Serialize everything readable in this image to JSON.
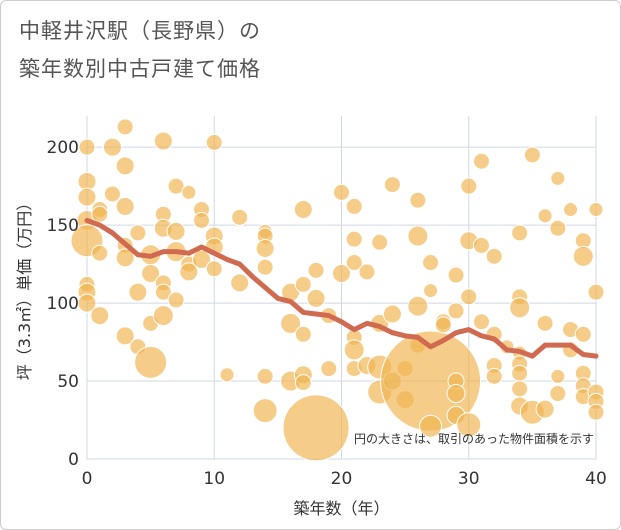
{
  "chart_data": {
    "type": "scatter",
    "title_line1": "中軽井沢駅（長野県）の",
    "title_line2": "築年数別中古戸建て価格",
    "xlabel": "築年数（年）",
    "ylabel": "坪（3.3㎡）単価（万円）",
    "xlim": [
      0,
      40
    ],
    "ylim": [
      0,
      220
    ],
    "xticks": [
      0,
      10,
      20,
      30,
      40
    ],
    "yticks": [
      0,
      50,
      100,
      150,
      200
    ],
    "note": "円の大きさは、取引のあった物件面積を示す",
    "colors": {
      "bubble": "#f0b450",
      "line": "#d06a50",
      "grid": "#cfd8e3"
    },
    "trend_line": {
      "x": [
        0,
        1,
        2,
        3,
        4,
        5,
        6,
        7,
        8,
        9,
        10,
        11,
        12,
        13,
        14,
        15,
        16,
        17,
        18,
        19,
        20,
        21,
        22,
        23,
        24,
        25,
        26,
        27,
        28,
        29,
        30,
        31,
        32,
        33,
        34,
        35,
        36,
        37,
        38,
        39,
        40
      ],
      "y": [
        153,
        150,
        145,
        138,
        131,
        130,
        133,
        133,
        132,
        136,
        132,
        128,
        125,
        117,
        110,
        103,
        101,
        94,
        93,
        92,
        88,
        83,
        87,
        85,
        81,
        79,
        78,
        72,
        76,
        81,
        83,
        79,
        77,
        70,
        69,
        66,
        73,
        73,
        73,
        67,
        66
      ]
    },
    "bubbles": [
      {
        "x": 0,
        "y": 200,
        "s": 8
      },
      {
        "x": 0,
        "y": 178,
        "s": 9
      },
      {
        "x": 0,
        "y": 168,
        "s": 9
      },
      {
        "x": 0,
        "y": 153,
        "s": 10
      },
      {
        "x": 0,
        "y": 140,
        "s": 16
      },
      {
        "x": 0,
        "y": 112,
        "s": 8
      },
      {
        "x": 0,
        "y": 107,
        "s": 9
      },
      {
        "x": 0,
        "y": 100,
        "s": 9
      },
      {
        "x": 1,
        "y": 160,
        "s": 8
      },
      {
        "x": 1,
        "y": 157,
        "s": 8
      },
      {
        "x": 1,
        "y": 132,
        "s": 8
      },
      {
        "x": 1,
        "y": 92,
        "s": 9
      },
      {
        "x": 2,
        "y": 200,
        "s": 9
      },
      {
        "x": 2,
        "y": 170,
        "s": 8
      },
      {
        "x": 3,
        "y": 213,
        "s": 8
      },
      {
        "x": 3,
        "y": 188,
        "s": 9
      },
      {
        "x": 3,
        "y": 162,
        "s": 9
      },
      {
        "x": 3,
        "y": 137,
        "s": 8
      },
      {
        "x": 3,
        "y": 129,
        "s": 9
      },
      {
        "x": 3,
        "y": 79,
        "s": 9
      },
      {
        "x": 4,
        "y": 145,
        "s": 8
      },
      {
        "x": 4,
        "y": 107,
        "s": 9
      },
      {
        "x": 4,
        "y": 72,
        "s": 8
      },
      {
        "x": 5,
        "y": 131,
        "s": 10
      },
      {
        "x": 5,
        "y": 119,
        "s": 9
      },
      {
        "x": 5,
        "y": 87,
        "s": 8
      },
      {
        "x": 5,
        "y": 62,
        "s": 16
      },
      {
        "x": 6,
        "y": 204,
        "s": 9
      },
      {
        "x": 6,
        "y": 157,
        "s": 8
      },
      {
        "x": 6,
        "y": 148,
        "s": 9
      },
      {
        "x": 6,
        "y": 113,
        "s": 8
      },
      {
        "x": 6,
        "y": 107,
        "s": 8
      },
      {
        "x": 6,
        "y": 92,
        "s": 10
      },
      {
        "x": 7,
        "y": 175,
        "s": 8
      },
      {
        "x": 7,
        "y": 146,
        "s": 9
      },
      {
        "x": 7,
        "y": 133,
        "s": 10
      },
      {
        "x": 7,
        "y": 102,
        "s": 8
      },
      {
        "x": 8,
        "y": 171,
        "s": 7
      },
      {
        "x": 8,
        "y": 125,
        "s": 8
      },
      {
        "x": 8,
        "y": 120,
        "s": 9
      },
      {
        "x": 9,
        "y": 160,
        "s": 8
      },
      {
        "x": 9,
        "y": 153,
        "s": 8
      },
      {
        "x": 9,
        "y": 128,
        "s": 9
      },
      {
        "x": 10,
        "y": 203,
        "s": 8
      },
      {
        "x": 10,
        "y": 143,
        "s": 9
      },
      {
        "x": 10,
        "y": 136,
        "s": 9
      },
      {
        "x": 10,
        "y": 122,
        "s": 8
      },
      {
        "x": 11,
        "y": 54,
        "s": 7
      },
      {
        "x": 12,
        "y": 155,
        "s": 8
      },
      {
        "x": 12,
        "y": 113,
        "s": 9
      },
      {
        "x": 14,
        "y": 146,
        "s": 7
      },
      {
        "x": 14,
        "y": 143,
        "s": 8
      },
      {
        "x": 14,
        "y": 135,
        "s": 9
      },
      {
        "x": 14,
        "y": 123,
        "s": 8
      },
      {
        "x": 14,
        "y": 53,
        "s": 8
      },
      {
        "x": 14,
        "y": 31,
        "s": 12
      },
      {
        "x": 16,
        "y": 107,
        "s": 9
      },
      {
        "x": 16,
        "y": 87,
        "s": 10
      },
      {
        "x": 16,
        "y": 50,
        "s": 10
      },
      {
        "x": 17,
        "y": 160,
        "s": 9
      },
      {
        "x": 17,
        "y": 112,
        "s": 8
      },
      {
        "x": 17,
        "y": 80,
        "s": 8
      },
      {
        "x": 17,
        "y": 54,
        "s": 9
      },
      {
        "x": 17,
        "y": 49,
        "s": 8
      },
      {
        "x": 18,
        "y": 121,
        "s": 8
      },
      {
        "x": 18,
        "y": 103,
        "s": 9
      },
      {
        "x": 18,
        "y": 20,
        "s": 33
      },
      {
        "x": 19,
        "y": 92,
        "s": 8
      },
      {
        "x": 19,
        "y": 58,
        "s": 8
      },
      {
        "x": 20,
        "y": 171,
        "s": 8
      },
      {
        "x": 20,
        "y": 119,
        "s": 9
      },
      {
        "x": 21,
        "y": 162,
        "s": 8
      },
      {
        "x": 21,
        "y": 141,
        "s": 8
      },
      {
        "x": 21,
        "y": 126,
        "s": 8
      },
      {
        "x": 21,
        "y": 78,
        "s": 8
      },
      {
        "x": 21,
        "y": 70,
        "s": 10
      },
      {
        "x": 21,
        "y": 58,
        "s": 8
      },
      {
        "x": 22,
        "y": 120,
        "s": 8
      },
      {
        "x": 22,
        "y": 60,
        "s": 9
      },
      {
        "x": 23,
        "y": 139,
        "s": 8
      },
      {
        "x": 23,
        "y": 87,
        "s": 9
      },
      {
        "x": 23,
        "y": 59,
        "s": 12
      },
      {
        "x": 23,
        "y": 43,
        "s": 12
      },
      {
        "x": 24,
        "y": 176,
        "s": 8
      },
      {
        "x": 24,
        "y": 93,
        "s": 9
      },
      {
        "x": 24,
        "y": 50,
        "s": 9
      },
      {
        "x": 25,
        "y": 58,
        "s": 8
      },
      {
        "x": 25,
        "y": 38,
        "s": 9
      },
      {
        "x": 26,
        "y": 166,
        "s": 8
      },
      {
        "x": 26,
        "y": 143,
        "s": 10
      },
      {
        "x": 26,
        "y": 98,
        "s": 10
      },
      {
        "x": 26,
        "y": 73,
        "s": 8
      },
      {
        "x": 27,
        "y": 126,
        "s": 8
      },
      {
        "x": 27,
        "y": 108,
        "s": 7
      },
      {
        "x": 27,
        "y": 50,
        "s": 50
      },
      {
        "x": 28,
        "y": 88,
        "s": 8
      },
      {
        "x": 28,
        "y": 86,
        "s": 8
      },
      {
        "x": 27,
        "y": 21,
        "s": 11
      },
      {
        "x": 29,
        "y": 118,
        "s": 8
      },
      {
        "x": 29,
        "y": 95,
        "s": 8
      },
      {
        "x": 29,
        "y": 50,
        "s": 8
      },
      {
        "x": 29,
        "y": 42,
        "s": 9
      },
      {
        "x": 29,
        "y": 28,
        "s": 9
      },
      {
        "x": 30,
        "y": 175,
        "s": 8
      },
      {
        "x": 30,
        "y": 140,
        "s": 9
      },
      {
        "x": 30,
        "y": 104,
        "s": 8
      },
      {
        "x": 30,
        "y": 22,
        "s": 12
      },
      {
        "x": 31,
        "y": 191,
        "s": 8
      },
      {
        "x": 31,
        "y": 137,
        "s": 8
      },
      {
        "x": 31,
        "y": 88,
        "s": 8
      },
      {
        "x": 32,
        "y": 130,
        "s": 8
      },
      {
        "x": 32,
        "y": 80,
        "s": 8
      },
      {
        "x": 32,
        "y": 60,
        "s": 8
      },
      {
        "x": 32,
        "y": 53,
        "s": 8
      },
      {
        "x": 33,
        "y": 72,
        "s": 7
      },
      {
        "x": 34,
        "y": 145,
        "s": 8
      },
      {
        "x": 34,
        "y": 104,
        "s": 8
      },
      {
        "x": 34,
        "y": 97,
        "s": 10
      },
      {
        "x": 34,
        "y": 68,
        "s": 7
      },
      {
        "x": 34,
        "y": 61,
        "s": 8
      },
      {
        "x": 34,
        "y": 55,
        "s": 8
      },
      {
        "x": 34,
        "y": 45,
        "s": 8
      },
      {
        "x": 34,
        "y": 34,
        "s": 9
      },
      {
        "x": 35,
        "y": 195,
        "s": 8
      },
      {
        "x": 35,
        "y": 30,
        "s": 12
      },
      {
        "x": 36,
        "y": 156,
        "s": 7
      },
      {
        "x": 36,
        "y": 87,
        "s": 8
      },
      {
        "x": 36,
        "y": 32,
        "s": 9
      },
      {
        "x": 37,
        "y": 180,
        "s": 7
      },
      {
        "x": 37,
        "y": 148,
        "s": 8
      },
      {
        "x": 37,
        "y": 53,
        "s": 7
      },
      {
        "x": 37,
        "y": 42,
        "s": 8
      },
      {
        "x": 38,
        "y": 160,
        "s": 7
      },
      {
        "x": 38,
        "y": 83,
        "s": 8
      },
      {
        "x": 38,
        "y": 70,
        "s": 8
      },
      {
        "x": 39,
        "y": 140,
        "s": 8
      },
      {
        "x": 39,
        "y": 130,
        "s": 10
      },
      {
        "x": 39,
        "y": 80,
        "s": 8
      },
      {
        "x": 39,
        "y": 55,
        "s": 8
      },
      {
        "x": 39,
        "y": 47,
        "s": 8
      },
      {
        "x": 39,
        "y": 40,
        "s": 8
      },
      {
        "x": 40,
        "y": 160,
        "s": 7
      },
      {
        "x": 40,
        "y": 107,
        "s": 8
      },
      {
        "x": 40,
        "y": 43,
        "s": 8
      },
      {
        "x": 40,
        "y": 37,
        "s": 8
      },
      {
        "x": 40,
        "y": 30,
        "s": 8
      }
    ]
  }
}
